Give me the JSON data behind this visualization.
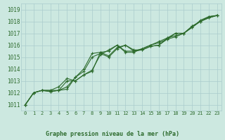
{
  "xlabel": "Graphe pression niveau de la mer (hPa)",
  "bg_color": "#cce8e0",
  "grid_color": "#aacccc",
  "line_color": "#2d6b2d",
  "ylim": [
    1010.5,
    1019.5
  ],
  "xlim": [
    -0.5,
    23.5
  ],
  "yticks": [
    1011,
    1012,
    1013,
    1014,
    1015,
    1016,
    1017,
    1018,
    1019
  ],
  "xticks": [
    0,
    1,
    2,
    3,
    4,
    5,
    6,
    7,
    8,
    9,
    10,
    11,
    12,
    13,
    14,
    15,
    16,
    17,
    18,
    19,
    20,
    21,
    22,
    23
  ],
  "series": [
    [
      1011.0,
      1012.0,
      1012.2,
      1012.1,
      1012.2,
      1012.3,
      1013.3,
      1014.0,
      1015.3,
      1015.4,
      1015.1,
      1015.8,
      1016.0,
      1015.6,
      1015.6,
      1015.9,
      1016.0,
      1016.6,
      1017.0,
      1017.0,
      1017.5,
      1018.1,
      1018.4,
      1018.5
    ],
    [
      1011.0,
      1012.0,
      1012.2,
      1012.2,
      1012.2,
      1012.5,
      1013.3,
      1013.8,
      1015.0,
      1015.3,
      1015.0,
      1015.7,
      1016.0,
      1015.5,
      1015.6,
      1015.9,
      1016.0,
      1016.5,
      1017.0,
      1017.0,
      1017.6,
      1018.0,
      1018.4,
      1018.5
    ],
    [
      1011.0,
      1012.0,
      1012.2,
      1012.1,
      1012.2,
      1013.0,
      1013.0,
      1013.5,
      1013.8,
      1015.4,
      1015.5,
      1016.0,
      1015.5,
      1015.5,
      1015.7,
      1016.0,
      1016.2,
      1016.5,
      1016.7,
      1017.0,
      1017.6,
      1018.0,
      1018.3,
      1018.5
    ],
    [
      1011.0,
      1012.0,
      1012.2,
      1012.2,
      1012.5,
      1013.2,
      1013.0,
      1013.5,
      1013.9,
      1015.2,
      1015.6,
      1016.0,
      1015.4,
      1015.4,
      1015.7,
      1016.0,
      1016.3,
      1016.6,
      1016.8,
      1017.0,
      1017.5,
      1018.0,
      1018.3,
      1018.5
    ]
  ]
}
